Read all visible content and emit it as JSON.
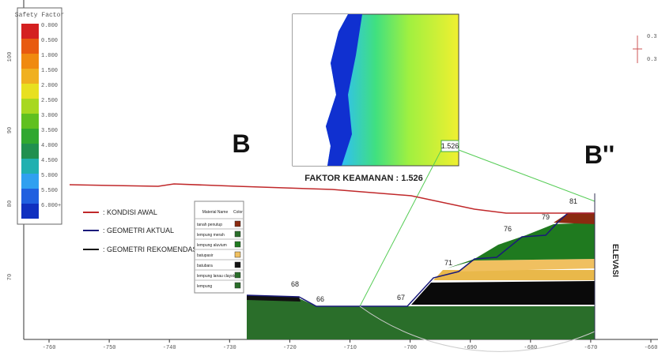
{
  "legend": {
    "title": "Safety Factor",
    "labels": [
      "0.000",
      "0.500",
      "1.000",
      "1.500",
      "2.000",
      "2.500",
      "3.000",
      "3.500",
      "4.000",
      "4.500",
      "5.000",
      "5.500",
      "6.000+"
    ]
  },
  "x_axis": {
    "labels": [
      "-760",
      "-750",
      "-740",
      "-730",
      "-720",
      "-710",
      "-700",
      "-690",
      "-680",
      "-670",
      "-660"
    ]
  },
  "y_axis": {
    "labels": [
      "100",
      "90",
      "80",
      "70"
    ]
  },
  "section": {
    "start": "B",
    "end": "B''",
    "axis_title": "ELEVASI"
  },
  "result": {
    "annotation": "FAKTOR KEAMANAN : 1.526",
    "slip_label": "1.526"
  },
  "geometry_legend": [
    ": KONDISI AWAL",
    ": GEOMETRI AKTUAL",
    ": GEOMETRI REKOMENDASI"
  ],
  "materials": {
    "header": [
      "Material Name",
      "Color"
    ],
    "rows": [
      "tanah penutup",
      "lempung merah",
      "lempung aluvium",
      "batupasir",
      "batubara",
      "lempung lanau claystone",
      "lempung"
    ]
  },
  "elevations": [
    "68",
    "66",
    "67",
    "71",
    "76",
    "79",
    "81"
  ],
  "load": [
    "0.3",
    "0.3"
  ]
}
